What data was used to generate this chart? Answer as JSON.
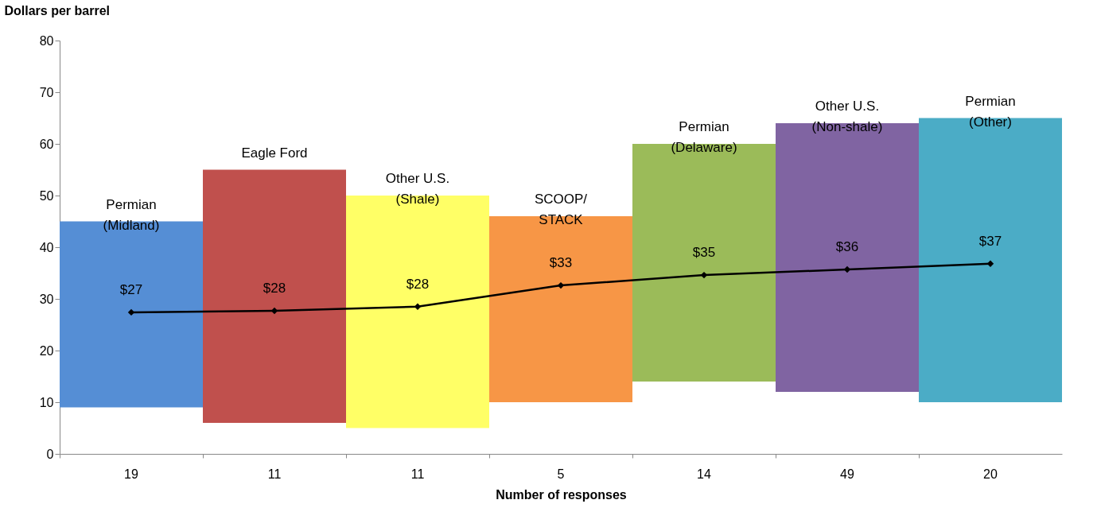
{
  "chart_data": {
    "type": "bar",
    "ylabel": "Dollars per barrel",
    "xlabel": "Number of responses",
    "categories": [
      "19",
      "11",
      "11",
      "5",
      "14",
      "49",
      "20"
    ],
    "ylim": [
      0,
      80
    ],
    "yticks": [
      0,
      10,
      20,
      30,
      40,
      50,
      60,
      70,
      80
    ],
    "series": [
      {
        "colors": [
          "#558ed5",
          "#c0504d",
          "#ffff66",
          "#f79646",
          "#9bbb59",
          "#8064a2",
          "#4bacc6"
        ],
        "base": [
          9,
          6,
          5,
          10,
          14,
          12,
          10
        ],
        "values": [
          36,
          49,
          45,
          36,
          46,
          52,
          55
        ]
      },
      {
        "type": "line",
        "color": "#000000",
        "marker": "diamond",
        "line_style": "solid",
        "values": [
          27.4,
          27.7,
          28.5,
          32.6,
          34.6,
          35.7,
          36.8
        ],
        "value_labels": [
          "$27",
          "$28",
          "$28",
          "$33",
          "$35",
          "$36",
          "$37"
        ]
      }
    ],
    "annotations": [
      "Permian\n(Midland)",
      "Eagle Ford",
      "Other U.S.\n(Shale)",
      "SCOOP/\nSTACK",
      "Permian\n(Delaware)",
      "Other U.S.\n(Non-shale)",
      "Permian\n(Other)"
    ]
  }
}
